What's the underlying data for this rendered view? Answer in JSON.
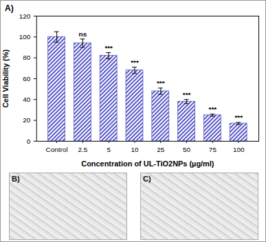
{
  "chart_data": {
    "type": "bar",
    "title": "A)",
    "x_label": "Concentration of UL-TiO2NPs (µg/ml)",
    "y_label": "Cell Viability (%)",
    "categories": [
      "Control",
      "2.5",
      "5",
      "10",
      "25",
      "50",
      "75",
      "100"
    ],
    "values": [
      100,
      94,
      82,
      68,
      48,
      38,
      25,
      17
    ],
    "errors": [
      5,
      4,
      3,
      3,
      3,
      2,
      1,
      1
    ],
    "annotations": [
      null,
      "ns",
      "***",
      "***",
      "***",
      "***",
      "***",
      "***"
    ],
    "color": "#5656c8",
    "ylim": [
      0,
      120
    ],
    "yticks": [
      0,
      20,
      40,
      60,
      80,
      100,
      120
    ],
    "grid": false
  },
  "images": [
    "B)",
    "C)"
  ]
}
